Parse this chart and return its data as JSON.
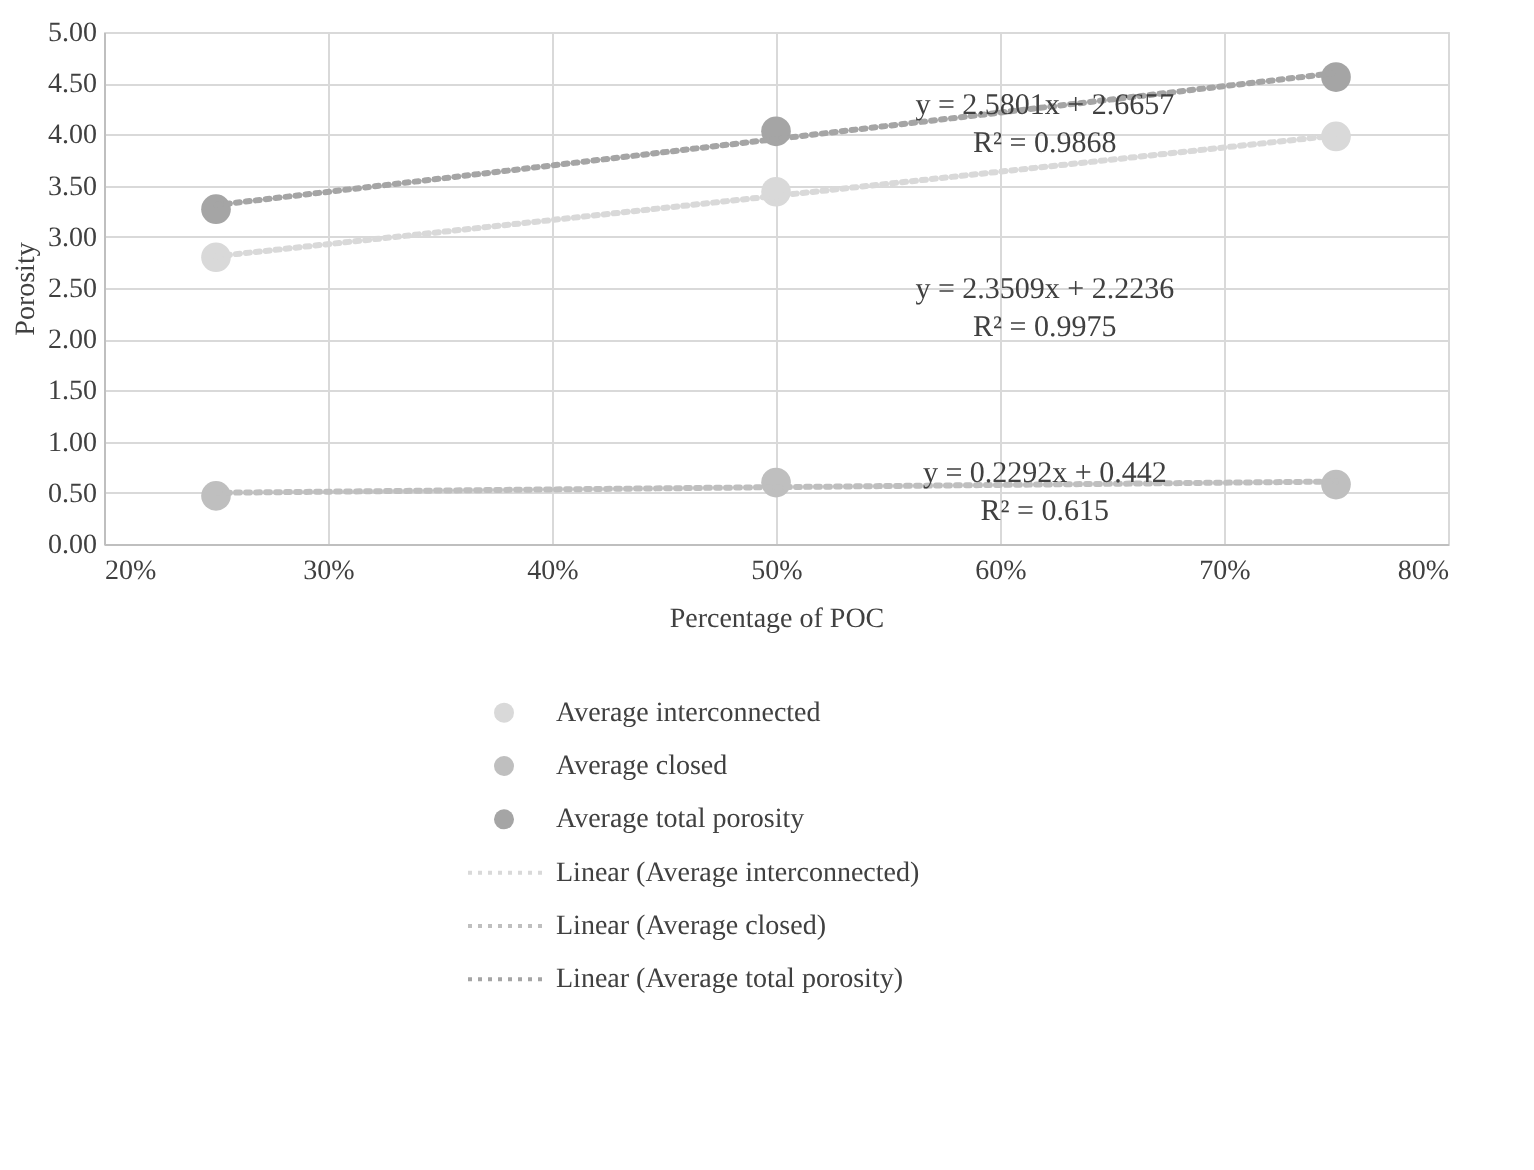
{
  "chart_data": {
    "type": "scatter",
    "xlabel": "Percentage of POC",
    "ylabel": "Porosity",
    "xlim": [
      0.2,
      0.8
    ],
    "xticks": [
      {
        "value": 0.2,
        "label": "20%"
      },
      {
        "value": 0.3,
        "label": "30%"
      },
      {
        "value": 0.4,
        "label": "40%"
      },
      {
        "value": 0.5,
        "label": "50%"
      },
      {
        "value": 0.6,
        "label": "60%"
      },
      {
        "value": 0.7,
        "label": "70%"
      },
      {
        "value": 0.8,
        "label": "80%"
      }
    ],
    "ylim": [
      0,
      5
    ],
    "yticks": [
      {
        "value": 0,
        "label": "0.00"
      },
      {
        "value": 0.5,
        "label": "0.50"
      },
      {
        "value": 1,
        "label": "1.00"
      },
      {
        "value": 1.5,
        "label": "1.50"
      },
      {
        "value": 2,
        "label": "2.00"
      },
      {
        "value": 2.5,
        "label": "2.50"
      },
      {
        "value": 3,
        "label": "3.00"
      },
      {
        "value": 3.5,
        "label": "3.50"
      },
      {
        "value": 4,
        "label": "4.00"
      },
      {
        "value": 4.5,
        "label": "4.50"
      },
      {
        "value": 5,
        "label": "5.00"
      }
    ],
    "grid": true,
    "legend": "bottom",
    "marker": "circle",
    "series": [
      {
        "name": "Average  interconnected",
        "color": "#d9d9d9",
        "x": [
          0.25,
          0.5,
          0.75
        ],
        "values": [
          2.8,
          3.44,
          3.98
        ]
      },
      {
        "name": "Average  closed",
        "color": "#bfbfbf",
        "x": [
          0.25,
          0.5,
          0.75
        ],
        "values": [
          0.47,
          0.6,
          0.58
        ]
      },
      {
        "name": "Average total porosity",
        "color": "#a5a5a5",
        "x": [
          0.25,
          0.5,
          0.75
        ],
        "values": [
          3.27,
          4.03,
          4.56
        ]
      },
      {
        "name": "Linear (Average  interconnected)",
        "type": "line",
        "marker": "none",
        "line_style": "dotted",
        "color": "#d9d9d9",
        "x": [
          0.25,
          0.75
        ],
        "values": [
          2.81,
          3.99
        ]
      },
      {
        "name": "Linear (Average  closed)",
        "type": "line",
        "marker": "none",
        "line_style": "dotted",
        "color": "#bfbfbf",
        "x": [
          0.25,
          0.75
        ],
        "values": [
          0.5,
          0.61
        ]
      },
      {
        "name": "Linear (Average total porosity)",
        "type": "line",
        "marker": "none",
        "line_style": "dotted",
        "color": "#a5a5a5",
        "x": [
          0.25,
          0.75
        ],
        "values": [
          3.31,
          4.6
        ]
      }
    ],
    "annotations": [
      "y = 2.5801x + 2.6657",
      "R² = 0.9868",
      "y = 2.3509x + 2.2236",
      "R² = 0.9975",
      "y = 0.2292x + 0.442",
      "R² = 0.615"
    ]
  }
}
